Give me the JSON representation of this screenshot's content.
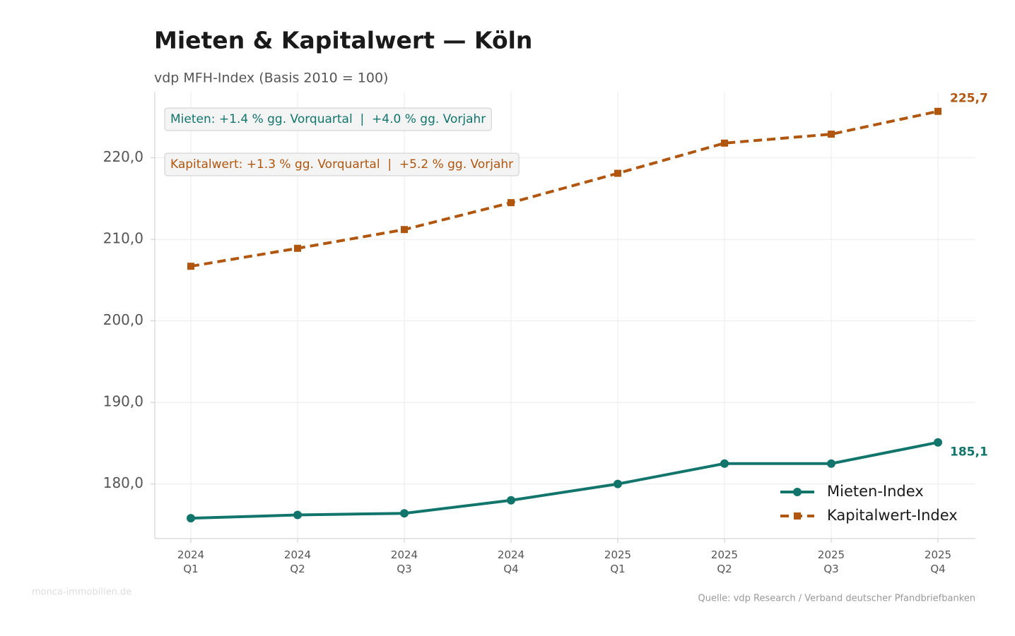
{
  "chart_data": {
    "type": "line",
    "title": "Mieten & Kapitalwert — Köln",
    "subtitle": "vdp MFH-Index (Basis 2010 = 100)",
    "categories": [
      [
        "2024",
        "Q1"
      ],
      [
        "2024",
        "Q2"
      ],
      [
        "2024",
        "Q3"
      ],
      [
        "2024",
        "Q4"
      ],
      [
        "2025",
        "Q1"
      ],
      [
        "2025",
        "Q2"
      ],
      [
        "2025",
        "Q3"
      ],
      [
        "2025",
        "Q4"
      ]
    ],
    "series": [
      {
        "name": "Mieten-Index",
        "color": "#12756b",
        "marker": "circle",
        "dashed": false,
        "values": [
          175.8,
          176.2,
          176.4,
          178.0,
          180.0,
          182.5,
          182.5,
          185.1
        ],
        "value_labels": [
          null,
          null,
          null,
          null,
          null,
          null,
          null,
          "185,1"
        ]
      },
      {
        "name": "Kapitalwert-Index",
        "color": "#b0560e",
        "marker": "square",
        "dashed": true,
        "values": [
          206.7,
          208.9,
          211.2,
          214.5,
          218.1,
          221.8,
          222.9,
          225.7
        ],
        "value_labels": [
          null,
          null,
          null,
          null,
          null,
          null,
          null,
          "225,7"
        ]
      }
    ],
    "ylim": [
      173.3,
      228.1
    ],
    "yticks": [
      {
        "value": 180,
        "label": "180,0"
      },
      {
        "value": 190,
        "label": "190,0"
      },
      {
        "value": 200,
        "label": "200,0"
      },
      {
        "value": 210,
        "label": "210,0"
      },
      {
        "value": 220,
        "label": "220,0"
      }
    ],
    "grid": true,
    "legend": "lower right",
    "annotations": [
      "Mieten: +1.4 % gg. Vorquartal  |  +4.0 % gg. Vorjahr",
      "Kapitalwert: +1.3 % gg. Vorquartal  |  +5.2 % gg. Vorjahr"
    ],
    "watermark": "monca-immobilien.de",
    "source": "Quelle: vdp Research / Verband deutscher Pfandbriefbanken"
  }
}
